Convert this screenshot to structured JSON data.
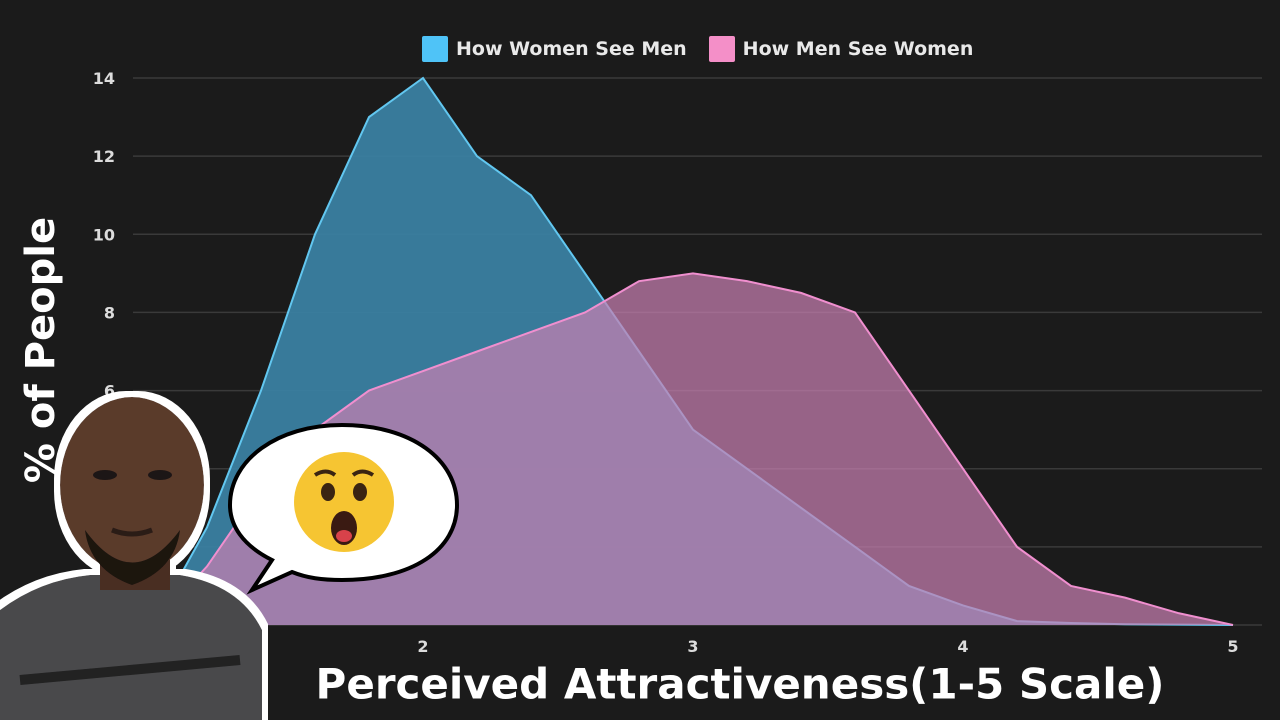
{
  "colors": {
    "background": "#1b1b1b",
    "grid": "#3a3a3a",
    "women_see_men_fill": "#3a7fa1",
    "women_see_men_line": "#62c7f0",
    "men_see_women_fill": "#c77fb1",
    "men_see_women_line": "#f08fcf",
    "legend_blue": "#4fc3f7",
    "legend_pink": "#f48fc8"
  },
  "legend": {
    "series1": "How Women See Men",
    "series2": "How Men See Women"
  },
  "overlay": {
    "person": "man-photo-cutout",
    "reaction": "surprised-face-emoji"
  },
  "chart_data": {
    "type": "area",
    "xlabel": "Perceived Attractiveness(1-5 Scale)",
    "ylabel": "% of People",
    "xlim": [
      1,
      5
    ],
    "ylim": [
      0,
      14
    ],
    "x_ticks": [
      2,
      3,
      4,
      5
    ],
    "y_ticks": [
      14,
      12,
      10,
      8,
      6
    ],
    "grid": true,
    "legend_position": "top-center",
    "series": [
      {
        "name": "How Women See Men",
        "x": [
          1.0,
          1.2,
          1.4,
          1.6,
          1.8,
          2.0,
          2.2,
          2.4,
          2.6,
          2.8,
          3.0,
          3.2,
          3.4,
          3.6,
          3.8,
          4.0,
          4.2,
          4.4,
          4.6,
          4.8,
          5.0
        ],
        "values": [
          0,
          2.5,
          6,
          10,
          13,
          14,
          12,
          11,
          9,
          7,
          5,
          4,
          3,
          2,
          1,
          0.5,
          0.1,
          0.05,
          0.02,
          0.01,
          0
        ]
      },
      {
        "name": "How Men See Women",
        "x": [
          1.0,
          1.2,
          1.4,
          1.6,
          1.8,
          2.0,
          2.2,
          2.4,
          2.6,
          2.8,
          3.0,
          3.2,
          3.4,
          3.6,
          3.8,
          4.0,
          4.2,
          4.4,
          4.6,
          4.8,
          5.0
        ],
        "values": [
          0,
          1.5,
          3.5,
          5,
          6,
          6.5,
          7,
          7.5,
          8,
          8.8,
          9,
          8.8,
          8.5,
          8,
          6,
          4,
          2,
          1,
          0.7,
          0.3,
          0
        ]
      }
    ]
  }
}
